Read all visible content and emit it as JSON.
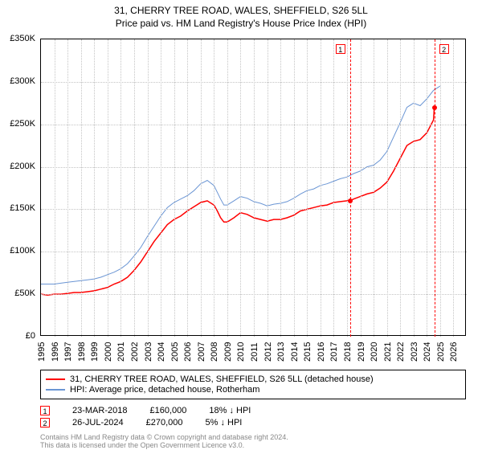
{
  "chart": {
    "type": "line",
    "title1": "31, CHERRY TREE ROAD, WALES, SHEFFIELD, S26 5LL",
    "title2": "Price paid vs. HM Land Registry's House Price Index (HPI)",
    "title_fontsize": 12,
    "background_color": "#ffffff",
    "grid_color": "#c4c4c4",
    "axis_color": "#000000",
    "tick_fontsize": 11,
    "y": {
      "min": 0,
      "max": 350000,
      "step": 50000,
      "ticks": [
        "£0",
        "£50K",
        "£100K",
        "£150K",
        "£200K",
        "£250K",
        "£300K",
        "£350K"
      ]
    },
    "x": {
      "min": 1995,
      "max": 2027,
      "step": 1,
      "ticks": [
        "1995",
        "1996",
        "1997",
        "1998",
        "1999",
        "2000",
        "2001",
        "2002",
        "2003",
        "2004",
        "2005",
        "2006",
        "2007",
        "2008",
        "2009",
        "2010",
        "2011",
        "2012",
        "2013",
        "2014",
        "2015",
        "2016",
        "2017",
        "2018",
        "2019",
        "2020",
        "2021",
        "2022",
        "2023",
        "2024",
        "2025",
        "2026"
      ]
    },
    "series": [
      {
        "name": "31, CHERRY TREE ROAD, WALES, SHEFFIELD, S26 5LL (detached house)",
        "color": "#ff0000",
        "line_width": 1.5,
        "data": [
          [
            1995,
            50000
          ],
          [
            1995.5,
            49000
          ],
          [
            1996,
            50000
          ],
          [
            1996.5,
            50000
          ],
          [
            1997,
            51000
          ],
          [
            1997.5,
            52000
          ],
          [
            1998,
            52000
          ],
          [
            1998.5,
            53000
          ],
          [
            1999,
            54000
          ],
          [
            1999.5,
            56000
          ],
          [
            2000,
            58000
          ],
          [
            2000.5,
            62000
          ],
          [
            2001,
            65000
          ],
          [
            2001.5,
            70000
          ],
          [
            2002,
            78000
          ],
          [
            2002.5,
            88000
          ],
          [
            2003,
            100000
          ],
          [
            2003.5,
            112000
          ],
          [
            2004,
            122000
          ],
          [
            2004.5,
            132000
          ],
          [
            2005,
            138000
          ],
          [
            2005.5,
            142000
          ],
          [
            2006,
            148000
          ],
          [
            2006.5,
            153000
          ],
          [
            2007,
            158000
          ],
          [
            2007.5,
            160000
          ],
          [
            2008,
            155000
          ],
          [
            2008.25,
            148000
          ],
          [
            2008.5,
            140000
          ],
          [
            2008.75,
            135000
          ],
          [
            2009,
            135000
          ],
          [
            2009.5,
            140000
          ],
          [
            2010,
            146000
          ],
          [
            2010.5,
            144000
          ],
          [
            2011,
            140000
          ],
          [
            2011.5,
            138000
          ],
          [
            2012,
            136000
          ],
          [
            2012.5,
            138000
          ],
          [
            2013,
            138000
          ],
          [
            2013.5,
            140000
          ],
          [
            2014,
            143000
          ],
          [
            2014.5,
            148000
          ],
          [
            2015,
            150000
          ],
          [
            2015.5,
            152000
          ],
          [
            2016,
            154000
          ],
          [
            2016.5,
            155000
          ],
          [
            2017,
            158000
          ],
          [
            2017.5,
            159000
          ],
          [
            2018,
            160000
          ],
          [
            2018.23,
            160000
          ],
          [
            2018.5,
            162000
          ],
          [
            2019,
            165000
          ],
          [
            2019.5,
            168000
          ],
          [
            2020,
            170000
          ],
          [
            2020.5,
            175000
          ],
          [
            2021,
            182000
          ],
          [
            2021.5,
            195000
          ],
          [
            2022,
            210000
          ],
          [
            2022.5,
            225000
          ],
          [
            2023,
            230000
          ],
          [
            2023.5,
            232000
          ],
          [
            2024,
            240000
          ],
          [
            2024.5,
            255000
          ],
          [
            2024.56,
            270000
          ]
        ]
      },
      {
        "name": "HPI: Average price, detached house, Rotherham",
        "color": "#6a95d4",
        "line_width": 1,
        "data": [
          [
            1995,
            62000
          ],
          [
            1995.5,
            62000
          ],
          [
            1996,
            62000
          ],
          [
            1996.5,
            63000
          ],
          [
            1997,
            64000
          ],
          [
            1997.5,
            65000
          ],
          [
            1998,
            66000
          ],
          [
            1998.5,
            67000
          ],
          [
            1999,
            68000
          ],
          [
            1999.5,
            70000
          ],
          [
            2000,
            73000
          ],
          [
            2000.5,
            76000
          ],
          [
            2001,
            80000
          ],
          [
            2001.5,
            86000
          ],
          [
            2002,
            95000
          ],
          [
            2002.5,
            105000
          ],
          [
            2003,
            118000
          ],
          [
            2003.5,
            130000
          ],
          [
            2004,
            142000
          ],
          [
            2004.5,
            152000
          ],
          [
            2005,
            158000
          ],
          [
            2005.5,
            162000
          ],
          [
            2006,
            166000
          ],
          [
            2006.5,
            172000
          ],
          [
            2007,
            180000
          ],
          [
            2007.5,
            184000
          ],
          [
            2008,
            178000
          ],
          [
            2008.25,
            170000
          ],
          [
            2008.5,
            162000
          ],
          [
            2008.75,
            155000
          ],
          [
            2009,
            155000
          ],
          [
            2009.5,
            160000
          ],
          [
            2010,
            165000
          ],
          [
            2010.5,
            163000
          ],
          [
            2011,
            159000
          ],
          [
            2011.5,
            157000
          ],
          [
            2012,
            154000
          ],
          [
            2012.5,
            156000
          ],
          [
            2013,
            157000
          ],
          [
            2013.5,
            159000
          ],
          [
            2014,
            163000
          ],
          [
            2014.5,
            168000
          ],
          [
            2015,
            172000
          ],
          [
            2015.5,
            174000
          ],
          [
            2016,
            178000
          ],
          [
            2016.5,
            180000
          ],
          [
            2017,
            183000
          ],
          [
            2017.5,
            186000
          ],
          [
            2018,
            188000
          ],
          [
            2018.5,
            192000
          ],
          [
            2019,
            195000
          ],
          [
            2019.5,
            200000
          ],
          [
            2020,
            202000
          ],
          [
            2020.5,
            208000
          ],
          [
            2021,
            218000
          ],
          [
            2021.5,
            235000
          ],
          [
            2022,
            252000
          ],
          [
            2022.5,
            270000
          ],
          [
            2023,
            275000
          ],
          [
            2023.5,
            272000
          ],
          [
            2024,
            280000
          ],
          [
            2024.5,
            290000
          ],
          [
            2025,
            295000
          ]
        ]
      }
    ],
    "sale_points": [
      {
        "n": "1",
        "year": 2018.23,
        "price": 160000
      },
      {
        "n": "2",
        "year": 2024.56,
        "price": 270000
      }
    ],
    "marker_labels": {
      "m1": "1",
      "m2": "2"
    }
  },
  "legend": {
    "rows": [
      {
        "color": "#ff0000",
        "label": "31, CHERRY TREE ROAD, WALES, SHEFFIELD, S26 5LL (detached house)"
      },
      {
        "color": "#6a95d4",
        "label": "HPI: Average price, detached house, Rotherham"
      }
    ]
  },
  "sales_table": {
    "rows": [
      {
        "n": "1",
        "date": "23-MAR-2018",
        "price": "£160,000",
        "delta": "18% ↓ HPI"
      },
      {
        "n": "2",
        "date": "26-JUL-2024",
        "price": "£270,000",
        "delta": "5% ↓ HPI"
      }
    ]
  },
  "footer": {
    "l1": "Contains HM Land Registry data © Crown copyright and database right 2024.",
    "l2": "This data is licensed under the Open Government Licence v3.0."
  }
}
